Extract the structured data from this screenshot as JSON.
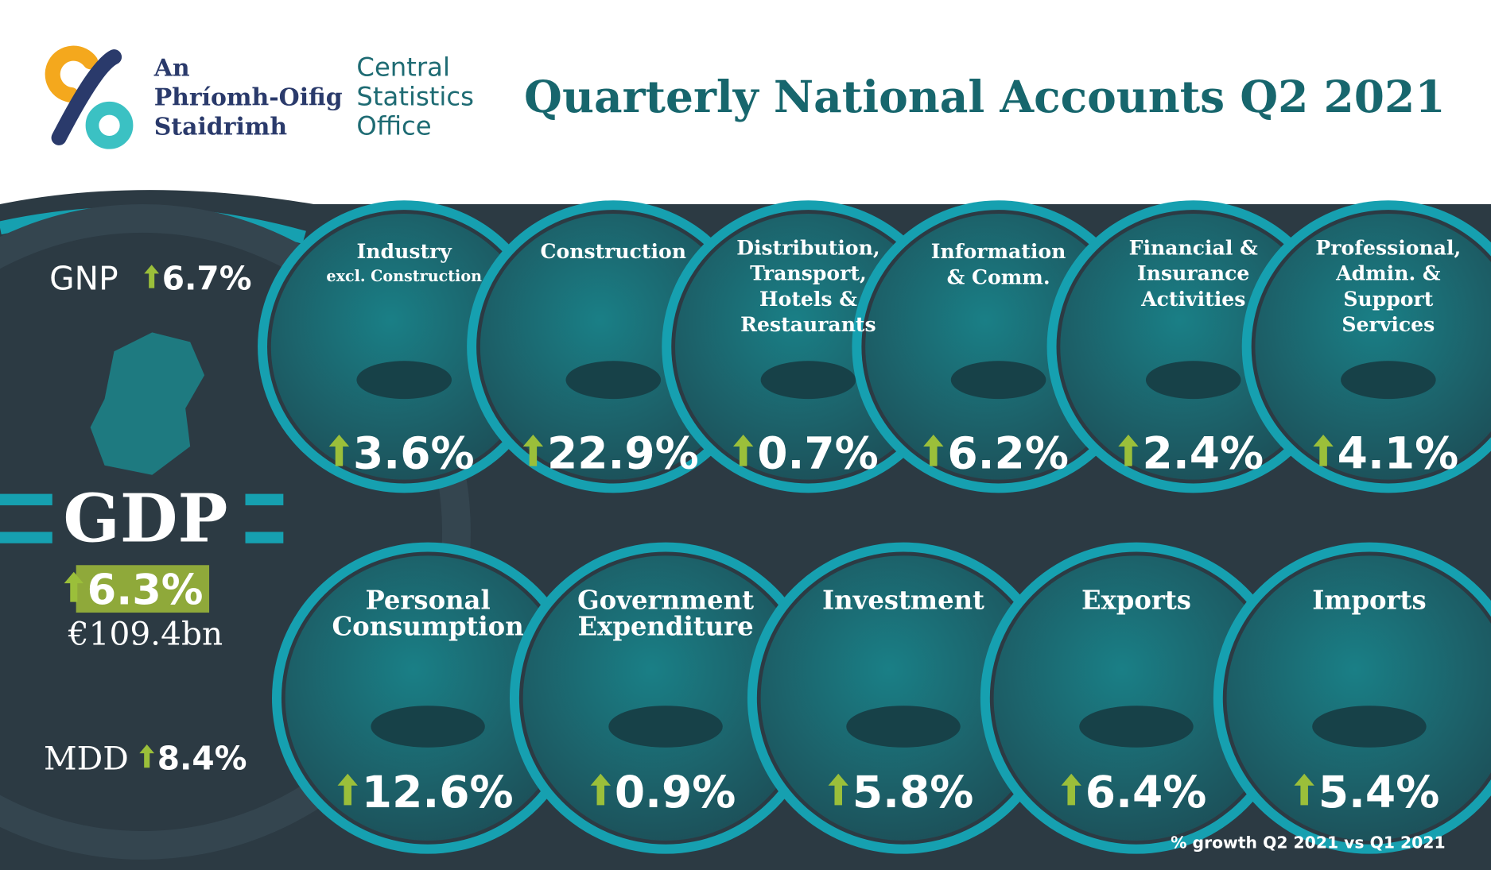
{
  "logo": {
    "irish": [
      "An",
      "Phríomh-Oifig",
      "Staidrimh"
    ],
    "english": [
      "Central",
      "Statistics",
      "Office"
    ]
  },
  "title": "Quarterly National Accounts Q2 2021",
  "gnp": {
    "label": "GNP",
    "growth": "6.7%"
  },
  "gdp": {
    "label": "GDP",
    "growth": "6.3%",
    "amount": "€109.4bn"
  },
  "mdd": {
    "label": "MDD",
    "growth": "8.4%"
  },
  "sectors": [
    {
      "name": [
        "Industry"
      ],
      "subtitle": "excl. Construction",
      "growth": "3.6%"
    },
    {
      "name": [
        "Construction"
      ],
      "growth": "22.9%"
    },
    {
      "name": [
        "Distribution,",
        "Transport,",
        "Hotels &",
        "Restaurants"
      ],
      "growth": "0.7%"
    },
    {
      "name": [
        "Information",
        "& Comm."
      ],
      "growth": "6.2%"
    },
    {
      "name": [
        "Financial &",
        "Insurance",
        "Activities"
      ],
      "growth": "2.4%"
    },
    {
      "name": [
        "Professional,",
        "Admin. &",
        "Support",
        "Services"
      ],
      "growth": "4.1%"
    }
  ],
  "expenditure": [
    {
      "name": [
        "Personal",
        "Consumption"
      ],
      "growth": "12.6%"
    },
    {
      "name": [
        "Government",
        "Expenditure"
      ],
      "growth": "0.9%"
    },
    {
      "name": [
        "Investment"
      ],
      "growth": "5.8%"
    },
    {
      "name": [
        "Exports"
      ],
      "growth": "6.4%"
    },
    {
      "name": [
        "Imports"
      ],
      "growth": "5.4%"
    }
  ],
  "footnote": "% growth Q2 2021 vs Q1 2021"
}
